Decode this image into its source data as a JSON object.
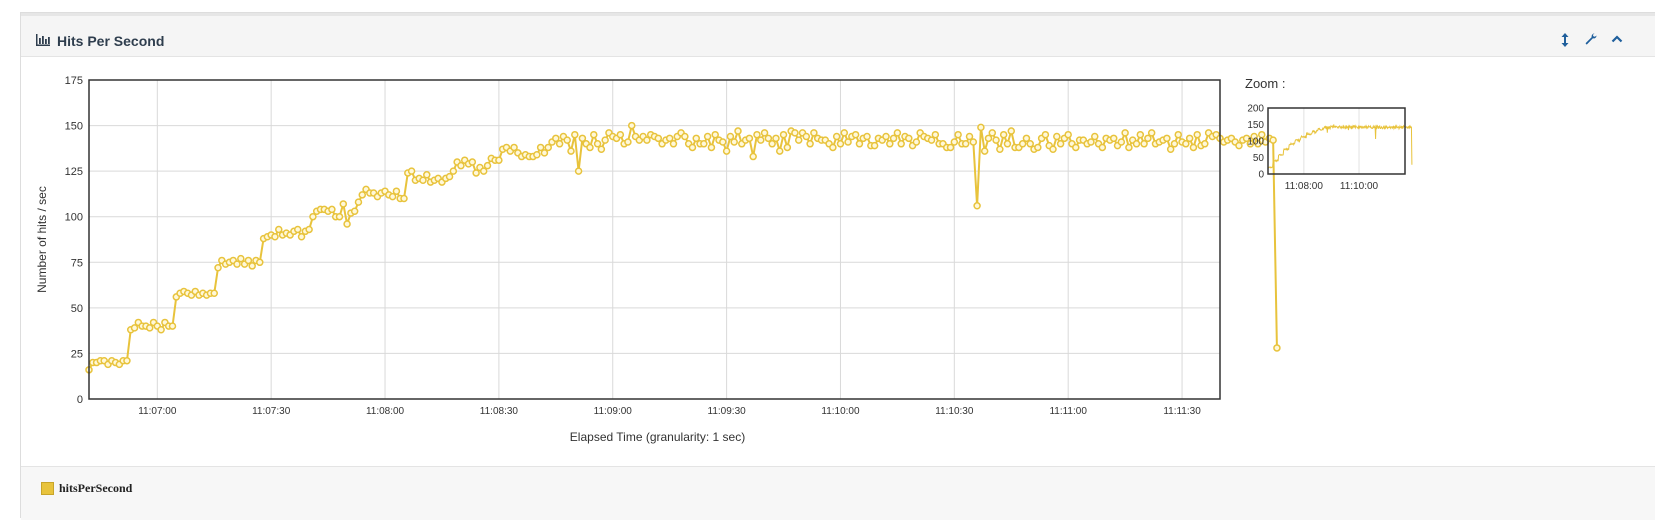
{
  "panel": {
    "title": "Hits Per Second",
    "icons": [
      "bar-chart-icon",
      "resize-vertical-icon",
      "wrench-icon",
      "chevron-up-icon"
    ]
  },
  "zoom": {
    "label": "Zoom :"
  },
  "legend": {
    "label": "hitsPerSecond",
    "color": "#e8c33c"
  },
  "chart_data": {
    "type": "line",
    "title": "",
    "xlabel": "Elapsed Time (granularity: 1 sec)",
    "ylabel": "Number of hits / sec",
    "ylim": [
      0,
      175
    ],
    "yticks": [
      0,
      25,
      50,
      75,
      100,
      125,
      150,
      175
    ],
    "xlim_seconds": [
      "11:06:42",
      "11:11:40"
    ],
    "xticks": [
      "11:07:00",
      "11:07:30",
      "11:08:00",
      "11:08:30",
      "11:09:00",
      "11:09:30",
      "11:10:00",
      "11:10:30",
      "11:11:00",
      "11:11:30"
    ],
    "grid": true,
    "series": [
      {
        "name": "hitsPerSecond",
        "color": "#e8c33c",
        "start_time": "11:06:42",
        "step_seconds": 1,
        "values": [
          16,
          20,
          20,
          21,
          21,
          19,
          21,
          20,
          19,
          21,
          21,
          38,
          39,
          42,
          40,
          40,
          39,
          42,
          40,
          38,
          42,
          40,
          40,
          56,
          58,
          59,
          58,
          57,
          59,
          57,
          58,
          57,
          58,
          58,
          72,
          76,
          74,
          75,
          76,
          74,
          77,
          74,
          76,
          73,
          76,
          75,
          88,
          89,
          90,
          89,
          93,
          90,
          91,
          90,
          92,
          93,
          89,
          92,
          93,
          100,
          103,
          104,
          104,
          103,
          104,
          100,
          100,
          107,
          96,
          102,
          103,
          108,
          112,
          115,
          113,
          113,
          111,
          113,
          114,
          112,
          111,
          114,
          110,
          110,
          124,
          125,
          120,
          121,
          120,
          123,
          119,
          120,
          121,
          119,
          121,
          122,
          125,
          130,
          128,
          131,
          129,
          130,
          124,
          127,
          125,
          128,
          132,
          131,
          131,
          137,
          138,
          136,
          138,
          135,
          133,
          134,
          133,
          133,
          134,
          138,
          135,
          138,
          141,
          143,
          140,
          144,
          142,
          136,
          145,
          125,
          143,
          140,
          138,
          145,
          140,
          137,
          142,
          146,
          144,
          143,
          145,
          140,
          141,
          150,
          144,
          142,
          144,
          142,
          145,
          144,
          143,
          140,
          142,
          143,
          140,
          144,
          146,
          144,
          140,
          138,
          143,
          140,
          140,
          144,
          138,
          145,
          142,
          141,
          136,
          144,
          141,
          147,
          140,
          142,
          143,
          133,
          145,
          142,
          146,
          143,
          140,
          143,
          136,
          145,
          138,
          147,
          146,
          142,
          146,
          144,
          140,
          146,
          143,
          142,
          142,
          140,
          138,
          144,
          140,
          146,
          141,
          144,
          145,
          140,
          143,
          144,
          139,
          139,
          143,
          142,
          144,
          140,
          143,
          146,
          140,
          144,
          143,
          139,
          141,
          146,
          144,
          143,
          142,
          145,
          140,
          140,
          138,
          138,
          141,
          145,
          140,
          140,
          144,
          141,
          106,
          149,
          136,
          143,
          146,
          142,
          137,
          145,
          140,
          147,
          138,
          138,
          140,
          143,
          140,
          137,
          138,
          143,
          145,
          139,
          137,
          144,
          140,
          143,
          145,
          140,
          138,
          142,
          142,
          140,
          141,
          144,
          140,
          138,
          143,
          142,
          143,
          139,
          141,
          146,
          138,
          142,
          140,
          145,
          140,
          143,
          146,
          140,
          141,
          142,
          143,
          137,
          140,
          145,
          141,
          140,
          143,
          138,
          145,
          139,
          140,
          146,
          144,
          145,
          143,
          141,
          142,
          143,
          141,
          139,
          142,
          143,
          140,
          144,
          140,
          145,
          141,
          143,
          142,
          28
        ]
      }
    ]
  }
}
